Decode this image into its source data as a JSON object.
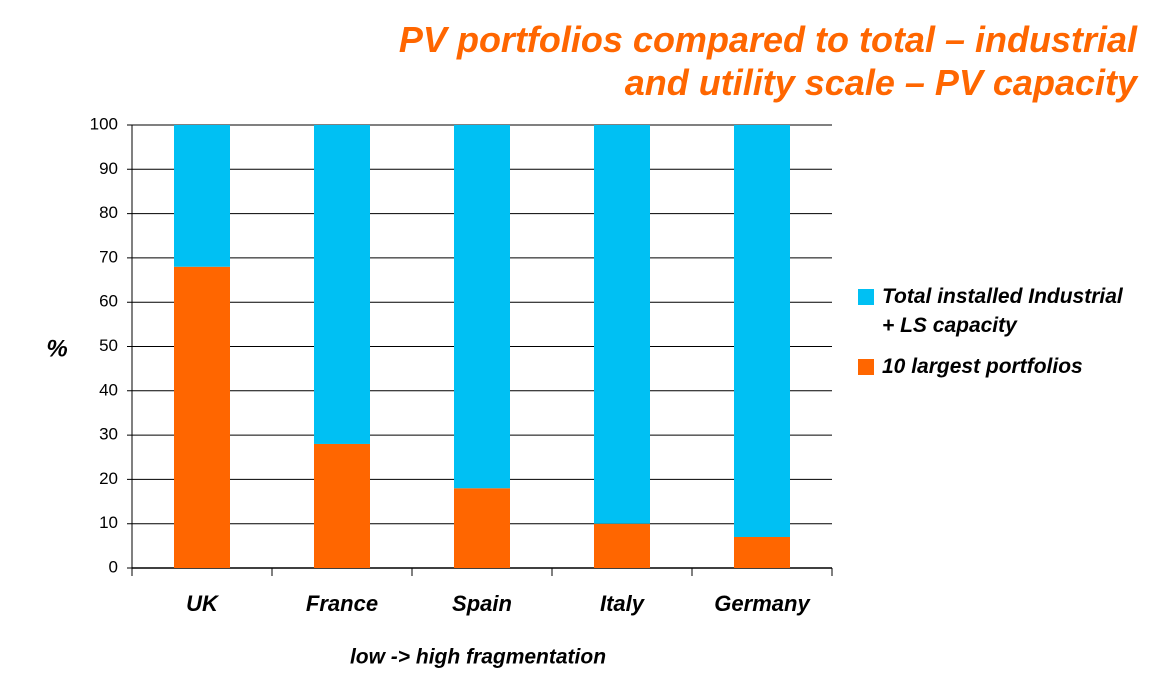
{
  "chart_data": {
    "type": "stacked_bar",
    "title": "PV portfolios compared to total – industrial and utility scale – PV capacity",
    "ylabel": "%",
    "xlabel": "low -> high fragmentation",
    "categories": [
      "UK",
      "France",
      "Spain",
      "Italy",
      "Germany"
    ],
    "series": [
      {
        "name": "10 largest portfolios",
        "color": "#ff6600",
        "values": [
          68,
          28,
          18,
          10,
          7
        ]
      },
      {
        "name": "Total installed Industrial + LS capacity",
        "color": "#00c0f3",
        "values": [
          32,
          72,
          82,
          90,
          93
        ]
      }
    ],
    "ylim": [
      0,
      100
    ],
    "yticks": [
      0,
      10,
      20,
      30,
      40,
      50,
      60,
      70,
      80,
      90,
      100
    ],
    "grid": true,
    "legend": "right"
  }
}
